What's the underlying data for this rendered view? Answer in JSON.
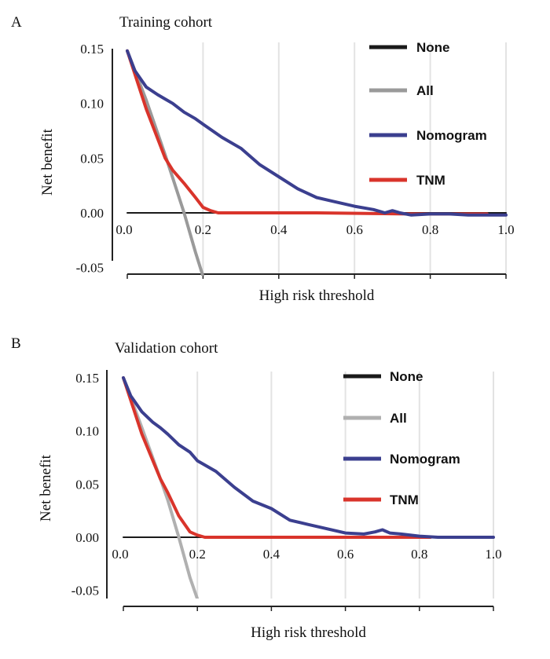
{
  "chart_data": [
    {
      "type": "line",
      "panel_label": "A",
      "title": "Training cohort",
      "xlabel": "High risk threshold",
      "ylabel": "Net benefit",
      "xlim": [
        0,
        1
      ],
      "ylim": [
        -0.05,
        0.15
      ],
      "x_ticks": [
        "0.0",
        "0.2",
        "0.4",
        "0.6",
        "0.8",
        "1.0"
      ],
      "y_ticks": [
        "0.15",
        "0.10",
        "0.05",
        "0.00",
        "-0.05"
      ],
      "grid": true,
      "legend_position": "top-right",
      "series": [
        {
          "name": "None",
          "color": "#1a1a1a",
          "points": [
            [
              0.0,
              0.0
            ],
            [
              1.0,
              0.0
            ]
          ]
        },
        {
          "name": "All",
          "color": "#9a9a9a",
          "points": [
            [
              0.0,
              0.148
            ],
            [
              0.05,
              0.103
            ],
            [
              0.1,
              0.053
            ],
            [
              0.12,
              0.032
            ],
            [
              0.15,
              0.0
            ],
            [
              0.18,
              -0.036
            ],
            [
              0.2,
              -0.058
            ]
          ]
        },
        {
          "name": "Nomogram",
          "color": "#3b3f8f",
          "points": [
            [
              0.0,
              0.148
            ],
            [
              0.02,
              0.13
            ],
            [
              0.05,
              0.115
            ],
            [
              0.08,
              0.108
            ],
            [
              0.1,
              0.104
            ],
            [
              0.12,
              0.1
            ],
            [
              0.15,
              0.092
            ],
            [
              0.18,
              0.086
            ],
            [
              0.2,
              0.081
            ],
            [
              0.25,
              0.069
            ],
            [
              0.3,
              0.059
            ],
            [
              0.35,
              0.044
            ],
            [
              0.4,
              0.033
            ],
            [
              0.45,
              0.022
            ],
            [
              0.5,
              0.014
            ],
            [
              0.55,
              0.01
            ],
            [
              0.6,
              0.006
            ],
            [
              0.65,
              0.003
            ],
            [
              0.68,
              0.0
            ],
            [
              0.7,
              0.002
            ],
            [
              0.72,
              0.0
            ],
            [
              0.75,
              -0.002
            ],
            [
              0.8,
              -0.001
            ],
            [
              0.85,
              -0.001
            ],
            [
              0.9,
              -0.002
            ],
            [
              1.0,
              -0.002
            ]
          ]
        },
        {
          "name": "TNM",
          "color": "#d9342b",
          "points": [
            [
              0.0,
              0.148
            ],
            [
              0.05,
              0.095
            ],
            [
              0.1,
              0.05
            ],
            [
              0.12,
              0.039
            ],
            [
              0.15,
              0.027
            ],
            [
              0.18,
              0.014
            ],
            [
              0.2,
              0.005
            ],
            [
              0.22,
              0.002
            ],
            [
              0.24,
              0.0
            ],
            [
              0.5,
              0.0
            ],
            [
              0.75,
              -0.001
            ],
            [
              0.95,
              -0.001
            ]
          ]
        }
      ]
    },
    {
      "type": "line",
      "panel_label": "B",
      "title": "Validation cohort",
      "xlabel": "High risk threshold",
      "ylabel": "Net benefit",
      "xlim": [
        0,
        1
      ],
      "ylim": [
        -0.05,
        0.15
      ],
      "x_ticks": [
        "0.0",
        "0.2",
        "0.4",
        "0.6",
        "0.8",
        "1.0"
      ],
      "y_ticks": [
        "0.15",
        "0.10",
        "0.05",
        "0.00",
        "-0.05"
      ],
      "grid": true,
      "legend_position": "top-right",
      "series": [
        {
          "name": "None",
          "color": "#1a1a1a",
          "points": [
            [
              0.0,
              0.0
            ],
            [
              0.85,
              0.0
            ]
          ]
        },
        {
          "name": "All",
          "color": "#b0b0b0",
          "points": [
            [
              0.0,
              0.15
            ],
            [
              0.05,
              0.103
            ],
            [
              0.1,
              0.055
            ],
            [
              0.12,
              0.035
            ],
            [
              0.15,
              0.0
            ],
            [
              0.18,
              -0.038
            ],
            [
              0.2,
              -0.058
            ]
          ]
        },
        {
          "name": "Nomogram",
          "color": "#3b3f8f",
          "points": [
            [
              0.0,
              0.15
            ],
            [
              0.02,
              0.133
            ],
            [
              0.05,
              0.118
            ],
            [
              0.08,
              0.108
            ],
            [
              0.1,
              0.103
            ],
            [
              0.12,
              0.097
            ],
            [
              0.15,
              0.087
            ],
            [
              0.18,
              0.08
            ],
            [
              0.2,
              0.072
            ],
            [
              0.25,
              0.062
            ],
            [
              0.3,
              0.047
            ],
            [
              0.35,
              0.034
            ],
            [
              0.4,
              0.027
            ],
            [
              0.45,
              0.016
            ],
            [
              0.5,
              0.012
            ],
            [
              0.55,
              0.008
            ],
            [
              0.6,
              0.004
            ],
            [
              0.65,
              0.003
            ],
            [
              0.68,
              0.005
            ],
            [
              0.7,
              0.007
            ],
            [
              0.72,
              0.004
            ],
            [
              0.75,
              0.003
            ],
            [
              0.8,
              0.001
            ],
            [
              0.85,
              0.0
            ],
            [
              0.9,
              0.0
            ],
            [
              1.0,
              0.0
            ]
          ]
        },
        {
          "name": "TNM",
          "color": "#d9342b",
          "points": [
            [
              0.0,
              0.15
            ],
            [
              0.05,
              0.097
            ],
            [
              0.1,
              0.055
            ],
            [
              0.12,
              0.042
            ],
            [
              0.15,
              0.02
            ],
            [
              0.18,
              0.005
            ],
            [
              0.2,
              0.002
            ],
            [
              0.22,
              0.0
            ],
            [
              0.5,
              0.0
            ],
            [
              0.8,
              0.0
            ],
            [
              0.83,
              0.0
            ]
          ]
        }
      ]
    }
  ]
}
